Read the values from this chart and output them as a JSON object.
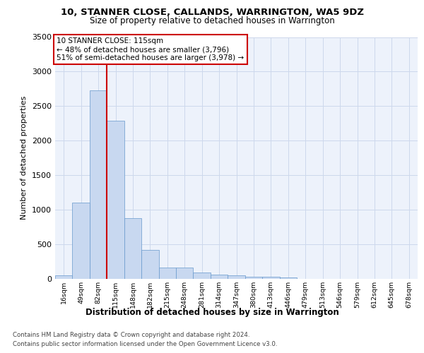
{
  "title": "10, STANNER CLOSE, CALLANDS, WARRINGTON, WA5 9DZ",
  "subtitle": "Size of property relative to detached houses in Warrington",
  "xlabel": "Distribution of detached houses by size in Warrington",
  "ylabel": "Number of detached properties",
  "categories": [
    "16sqm",
    "49sqm",
    "82sqm",
    "115sqm",
    "148sqm",
    "182sqm",
    "215sqm",
    "248sqm",
    "281sqm",
    "314sqm",
    "347sqm",
    "380sqm",
    "413sqm",
    "446sqm",
    "479sqm",
    "513sqm",
    "546sqm",
    "579sqm",
    "612sqm",
    "645sqm",
    "678sqm"
  ],
  "values": [
    50,
    1100,
    2730,
    2290,
    880,
    420,
    165,
    160,
    90,
    60,
    55,
    30,
    30,
    25,
    0,
    0,
    0,
    0,
    0,
    0,
    0
  ],
  "bar_color": "#c8d8f0",
  "bar_edge_color": "#6699cc",
  "vline_color": "#cc0000",
  "vline_x": 2.5,
  "pct_smaller": 48,
  "n_smaller": 3796,
  "pct_larger": 51,
  "n_larger": 3978,
  "ylim": [
    0,
    3500
  ],
  "yticks": [
    0,
    500,
    1000,
    1500,
    2000,
    2500,
    3000,
    3500
  ],
  "background_color": "#edf2fb",
  "grid_color": "#cdd8ec",
  "footer_line1": "Contains HM Land Registry data © Crown copyright and database right 2024.",
  "footer_line2": "Contains public sector information licensed under the Open Government Licence v3.0."
}
